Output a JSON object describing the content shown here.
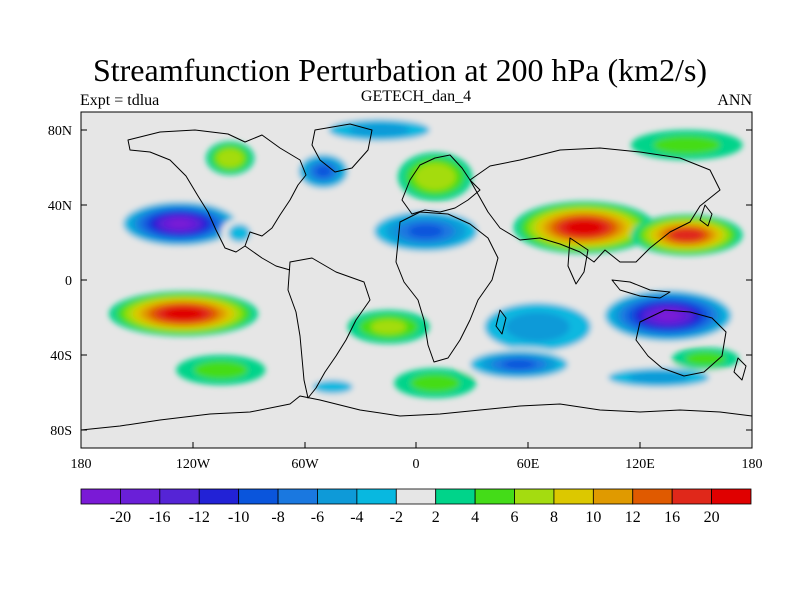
{
  "title": "Streamfunction Perturbation at 200 hPa (km2/s)",
  "left_subtitle": "Expt = tdlua",
  "center_subtitle": "GETECH_dan_4",
  "right_subtitle": "ANN",
  "y_ticks": [
    "80N",
    "40N",
    "0",
    "40S",
    "80S"
  ],
  "x_ticks": [
    "180",
    "120W",
    "60W",
    "0",
    "60E",
    "120E",
    "180"
  ],
  "colorbar": {
    "labels": [
      "-20",
      "-16",
      "-12",
      "-10",
      "-8",
      "-6",
      "-4",
      "-2",
      "2",
      "4",
      "6",
      "8",
      "10",
      "12",
      "16",
      "20"
    ],
    "colors": [
      "#7a1ad6",
      "#6a1fd8",
      "#5524d6",
      "#2222d6",
      "#0a55dc",
      "#1a78e0",
      "#0e9ad8",
      "#08b8e0",
      "#e6e6e6",
      "#00d48a",
      "#44dc18",
      "#a4dc10",
      "#dcc800",
      "#e09a00",
      "#e05a00",
      "#e0281a",
      "#e00000"
    ]
  },
  "field": {
    "background_color": "#e6e6e6",
    "features": [
      {
        "name": "low-subtropical-n-pacific",
        "lon": -127,
        "lat": 30,
        "rlon": 34,
        "rlat": 13,
        "value": -22
      },
      {
        "name": "low-gulf-of-mexico",
        "lon": -95,
        "lat": 25,
        "rlon": 10,
        "rlat": 8,
        "value": -4
      },
      {
        "name": "low-north-america",
        "lon": -50,
        "lat": 58,
        "rlon": 16,
        "rlat": 11,
        "value": -10
      },
      {
        "name": "low-arctic-north-atlantic",
        "lon": -20,
        "lat": 80,
        "rlon": 38,
        "rlat": 8,
        "value": -5
      },
      {
        "name": "low-north-africa",
        "lon": 5,
        "lat": 26,
        "rlon": 34,
        "rlat": 13,
        "value": -9
      },
      {
        "name": "low-indian-ocean",
        "lon": 65,
        "lat": -25,
        "rlon": 40,
        "rlat": 18,
        "value": -6
      },
      {
        "name": "low-southern-ocean-indian",
        "lon": 55,
        "lat": -45,
        "rlon": 32,
        "rlat": 9,
        "value": -9
      },
      {
        "name": "low-australia",
        "lon": 135,
        "lat": -19,
        "rlon": 38,
        "rlat": 15,
        "value": -22
      },
      {
        "name": "low-southern-ocean-pacific",
        "lon": 130,
        "lat": -52,
        "rlon": 38,
        "rlat": 7,
        "value": -5
      },
      {
        "name": "low-south-atlantic",
        "lon": -45,
        "lat": -57,
        "rlon": 18,
        "rlat": 6,
        "value": -4
      },
      {
        "name": "high-south-pacific",
        "lon": -125,
        "lat": -18,
        "rlon": 40,
        "rlat": 12,
        "value": 22
      },
      {
        "name": "high-south-atlantic",
        "lon": -15,
        "lat": -25,
        "rlon": 22,
        "rlat": 9,
        "value": 6
      },
      {
        "name": "high-asia-tibet",
        "lon": 90,
        "lat": 28,
        "rlon": 38,
        "rlat": 14,
        "value": 22
      },
      {
        "name": "high-west-pacific",
        "lon": 145,
        "lat": 24,
        "rlon": 30,
        "rlat": 11,
        "value": 17
      },
      {
        "name": "high-eurasia",
        "lon": 10,
        "lat": 55,
        "rlon": 20,
        "rlat": 13,
        "value": 7
      },
      {
        "name": "high-canada",
        "lon": -100,
        "lat": 65,
        "rlon": 13,
        "rlat": 9,
        "value": 7
      },
      {
        "name": "high-northeast-asia",
        "lon": 145,
        "lat": 72,
        "rlon": 30,
        "rlat": 8,
        "value": 4
      },
      {
        "name": "high-southeast-pacific",
        "lon": -105,
        "lat": -48,
        "rlon": 24,
        "rlat": 8,
        "value": 4
      },
      {
        "name": "high-africa-south",
        "lon": 10,
        "lat": -55,
        "rlon": 22,
        "rlat": 8,
        "value": 4
      },
      {
        "name": "high-western-australia",
        "lon": 155,
        "lat": -42,
        "rlon": 18,
        "rlat": 6,
        "value": 4
      }
    ]
  }
}
